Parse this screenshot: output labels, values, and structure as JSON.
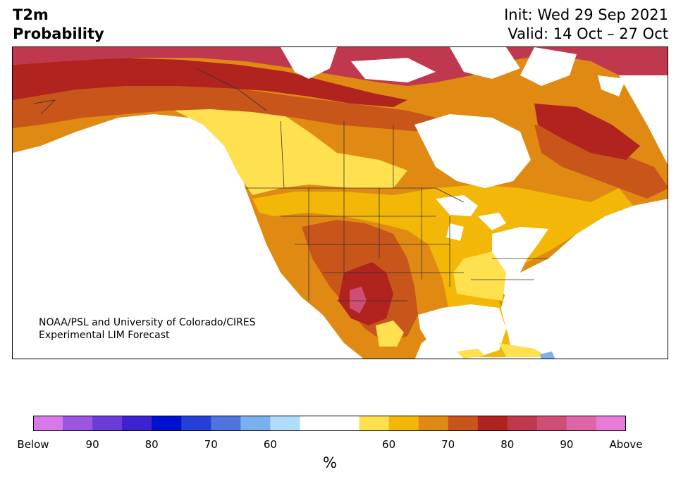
{
  "header": {
    "variable": "T2m",
    "product": "Probability",
    "init": "Init: Wed 29 Sep 2021",
    "valid": "Valid: 14 Oct – 27 Oct"
  },
  "credit": {
    "line1": "NOAA/PSL and University of Colorado/CIRES",
    "line2": "Experimental LIM Forecast"
  },
  "colorbar": {
    "unit": "%",
    "colors": [
      "#d67ae8",
      "#9b55e0",
      "#6a3cd9",
      "#3d22d4",
      "#0010d0",
      "#2440d8",
      "#4f74e0",
      "#7ab0ee",
      "#b0dcfa",
      "#ffffff",
      "#ffffff",
      "#ffe14f",
      "#f2b707",
      "#e08a13",
      "#c8561a",
      "#b0231f",
      "#c0384d",
      "#cf4f74",
      "#de66a8",
      "#e87bd8"
    ],
    "labels": [
      "Below",
      "90",
      "80",
      "70",
      "60",
      "60",
      "70",
      "80",
      "90",
      "Above"
    ]
  },
  "map": {
    "colors": {
      "above90": "#c0384d",
      "p80": "#b0231f",
      "p70": "#c8561a",
      "p65": "#e08a13",
      "p60": "#f2b707",
      "p55": "#ffe14f",
      "light_blue": "#7ab0ee",
      "pink": "#cf4f74",
      "land_white": "#ffffff"
    }
  }
}
